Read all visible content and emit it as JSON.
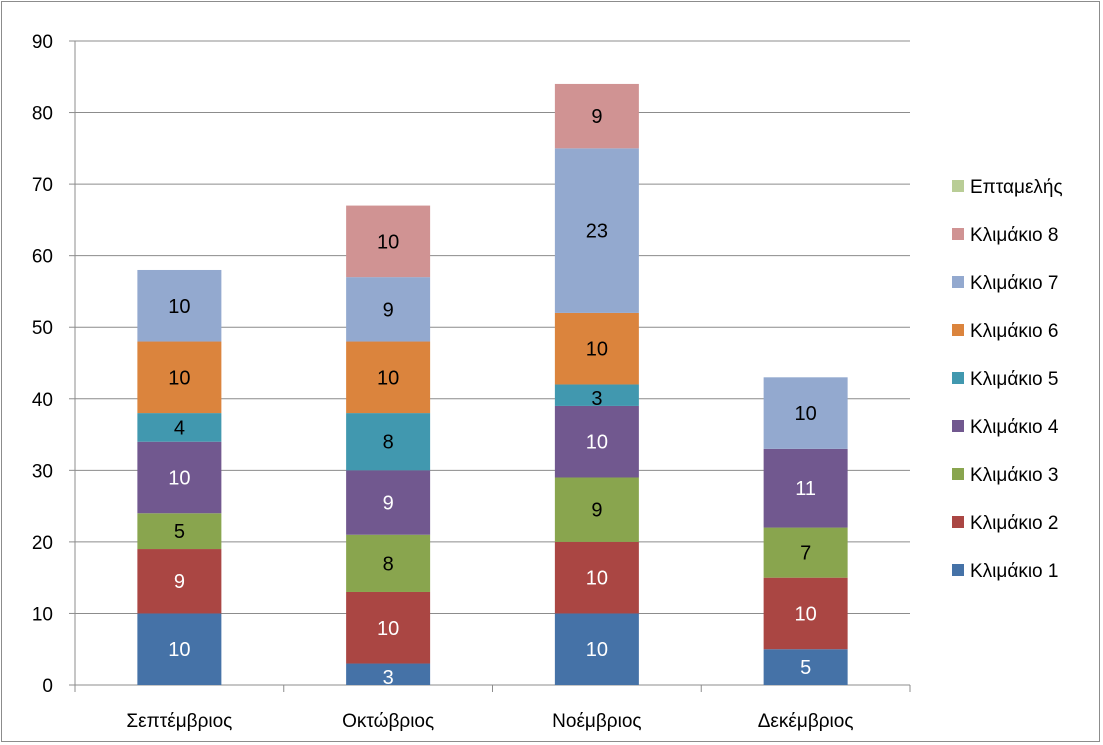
{
  "chart_data": {
    "type": "bar",
    "stacked": true,
    "categories": [
      "Σεπτέμβριος",
      "Οκτώβριος",
      "Νοέμβριος",
      "Δεκέμβριος"
    ],
    "ylim": [
      0,
      90
    ],
    "yticks": [
      "0",
      "10",
      "20",
      "30",
      "40",
      "50",
      "60",
      "70",
      "80",
      "90"
    ],
    "grid": true,
    "legend_position": "right",
    "series": [
      {
        "name": "Κλιμάκιο 1",
        "color": "#4572a7",
        "values": [
          10,
          3,
          10,
          5
        ],
        "labels": [
          "10",
          "3",
          "10",
          "5"
        ]
      },
      {
        "name": "Κλιμάκιο 2",
        "color": "#aa4643",
        "values": [
          9,
          10,
          10,
          10
        ],
        "labels": [
          "9",
          "10",
          "10",
          "10"
        ]
      },
      {
        "name": "Κλιμάκιο 3",
        "color": "#89a54e",
        "values": [
          5,
          8,
          9,
          7
        ],
        "labels": [
          "5",
          "8",
          "9",
          "7"
        ]
      },
      {
        "name": "Κλιμάκιο 4",
        "color": "#71588f",
        "values": [
          10,
          9,
          10,
          11
        ],
        "labels": [
          "10",
          "9",
          "10",
          "11"
        ]
      },
      {
        "name": "Κλιμάκιο 5",
        "color": "#4198af",
        "values": [
          4,
          8,
          3,
          0
        ],
        "labels": [
          "4",
          "8",
          "3",
          ""
        ]
      },
      {
        "name": "Κλιμάκιο 6",
        "color": "#db843d",
        "values": [
          10,
          10,
          10,
          0
        ],
        "labels": [
          "10",
          "10",
          "10",
          ""
        ]
      },
      {
        "name": "Κλιμάκιο 7",
        "color": "#93a9cf",
        "values": [
          10,
          9,
          23,
          10
        ],
        "labels": [
          "10",
          "9",
          "23",
          "10"
        ]
      },
      {
        "name": "Κλιμάκιο 8",
        "color": "#d09393",
        "values": [
          0,
          10,
          9,
          0
        ],
        "labels": [
          "",
          "10",
          "9",
          ""
        ]
      },
      {
        "name": "Επταμελής",
        "color": "#b9cd96",
        "values": [
          0,
          0,
          0,
          0
        ],
        "labels": [
          "",
          "",
          "",
          ""
        ]
      }
    ]
  }
}
